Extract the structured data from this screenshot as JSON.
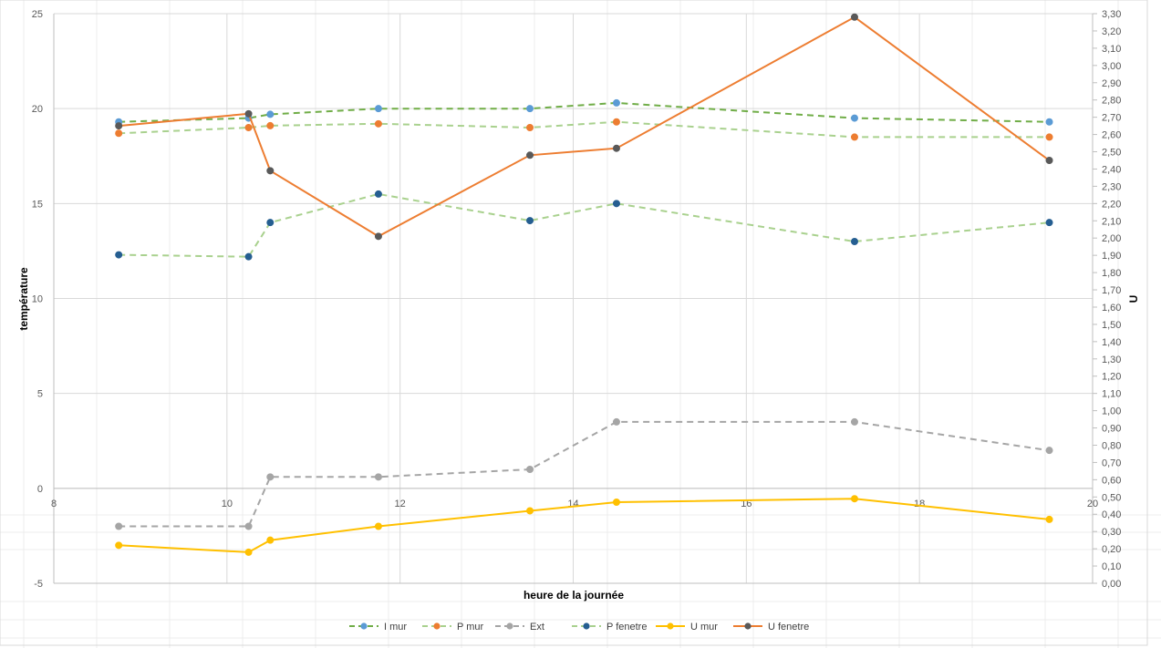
{
  "chart_data": {
    "type": "line",
    "xlabel": "heure de la journée",
    "ylabel": "température",
    "y2label": "U",
    "xlim": [
      8,
      20
    ],
    "ylim": [
      -5,
      25
    ],
    "y2lim": [
      0,
      3.3
    ],
    "x_ticks": [
      "8",
      "10",
      "12",
      "14",
      "16",
      "18",
      "20"
    ],
    "y_ticks": [
      "-5",
      "0",
      "5",
      "10",
      "15",
      "20",
      "25"
    ],
    "y2_ticks": [
      "0,00",
      "0,10",
      "0,20",
      "0,30",
      "0,40",
      "0,50",
      "0,60",
      "0,70",
      "0,80",
      "0,90",
      "1,00",
      "1,10",
      "1,20",
      "1,30",
      "1,40",
      "1,50",
      "1,60",
      "1,70",
      "1,80",
      "1,90",
      "2,00",
      "2,10",
      "2,20",
      "2,30",
      "2,40",
      "2,50",
      "2,60",
      "2,70",
      "2,80",
      "2,90",
      "3,00",
      "3,10",
      "3,20",
      "3,30"
    ],
    "grid": true,
    "legend_position": "bottom",
    "series": [
      {
        "name": "I mur",
        "axis": "left",
        "line_color": "#70AD47",
        "marker_color": "#5B9BD5",
        "dash": true,
        "x": [
          8.75,
          10.25,
          10.5,
          11.75,
          13.5,
          14.5,
          17.25,
          19.5
        ],
        "y": [
          19.3,
          19.5,
          19.7,
          20.0,
          20.0,
          20.3,
          19.5,
          19.3
        ]
      },
      {
        "name": "P mur",
        "axis": "left",
        "line_color": "#A9D18E",
        "marker_color": "#ED7D31",
        "dash": true,
        "x": [
          8.75,
          10.25,
          10.5,
          11.75,
          13.5,
          14.5,
          17.25,
          19.5
        ],
        "y": [
          18.7,
          19.0,
          19.1,
          19.2,
          19.0,
          19.3,
          18.5,
          18.5
        ]
      },
      {
        "name": "Ext",
        "axis": "left",
        "line_color": "#A5A5A5",
        "marker_color": "#A5A5A5",
        "dash": true,
        "x": [
          8.75,
          10.25,
          10.5,
          11.75,
          13.5,
          14.5,
          17.25,
          19.5
        ],
        "y": [
          -2.0,
          -2.0,
          0.6,
          0.6,
          1.0,
          3.5,
          3.5,
          2.0
        ]
      },
      {
        "name": "P fenetre",
        "axis": "left",
        "line_color": "#A9D18E",
        "marker_color": "#255E91",
        "dash": true,
        "x": [
          8.75,
          10.25,
          10.5,
          11.75,
          13.5,
          14.5,
          17.25,
          19.5
        ],
        "y": [
          12.3,
          12.2,
          14.0,
          15.5,
          14.1,
          15.0,
          13.0,
          14.0
        ]
      },
      {
        "name": "U mur",
        "axis": "right",
        "line_color": "#FFC000",
        "marker_color": "#FFC000",
        "dash": false,
        "x": [
          8.75,
          10.25,
          10.5,
          11.75,
          13.5,
          14.5,
          17.25,
          19.5
        ],
        "y": [
          0.22,
          0.18,
          0.25,
          0.33,
          0.42,
          0.47,
          0.49,
          0.37
        ]
      },
      {
        "name": "U fenetre",
        "axis": "right",
        "line_color": "#ED7D31",
        "marker_color": "#595959",
        "dash": false,
        "x": [
          8.75,
          10.25,
          10.5,
          11.75,
          13.5,
          14.5,
          17.25,
          19.5
        ],
        "y": [
          2.65,
          2.72,
          2.39,
          2.01,
          2.48,
          2.52,
          3.28,
          2.45
        ]
      }
    ]
  }
}
